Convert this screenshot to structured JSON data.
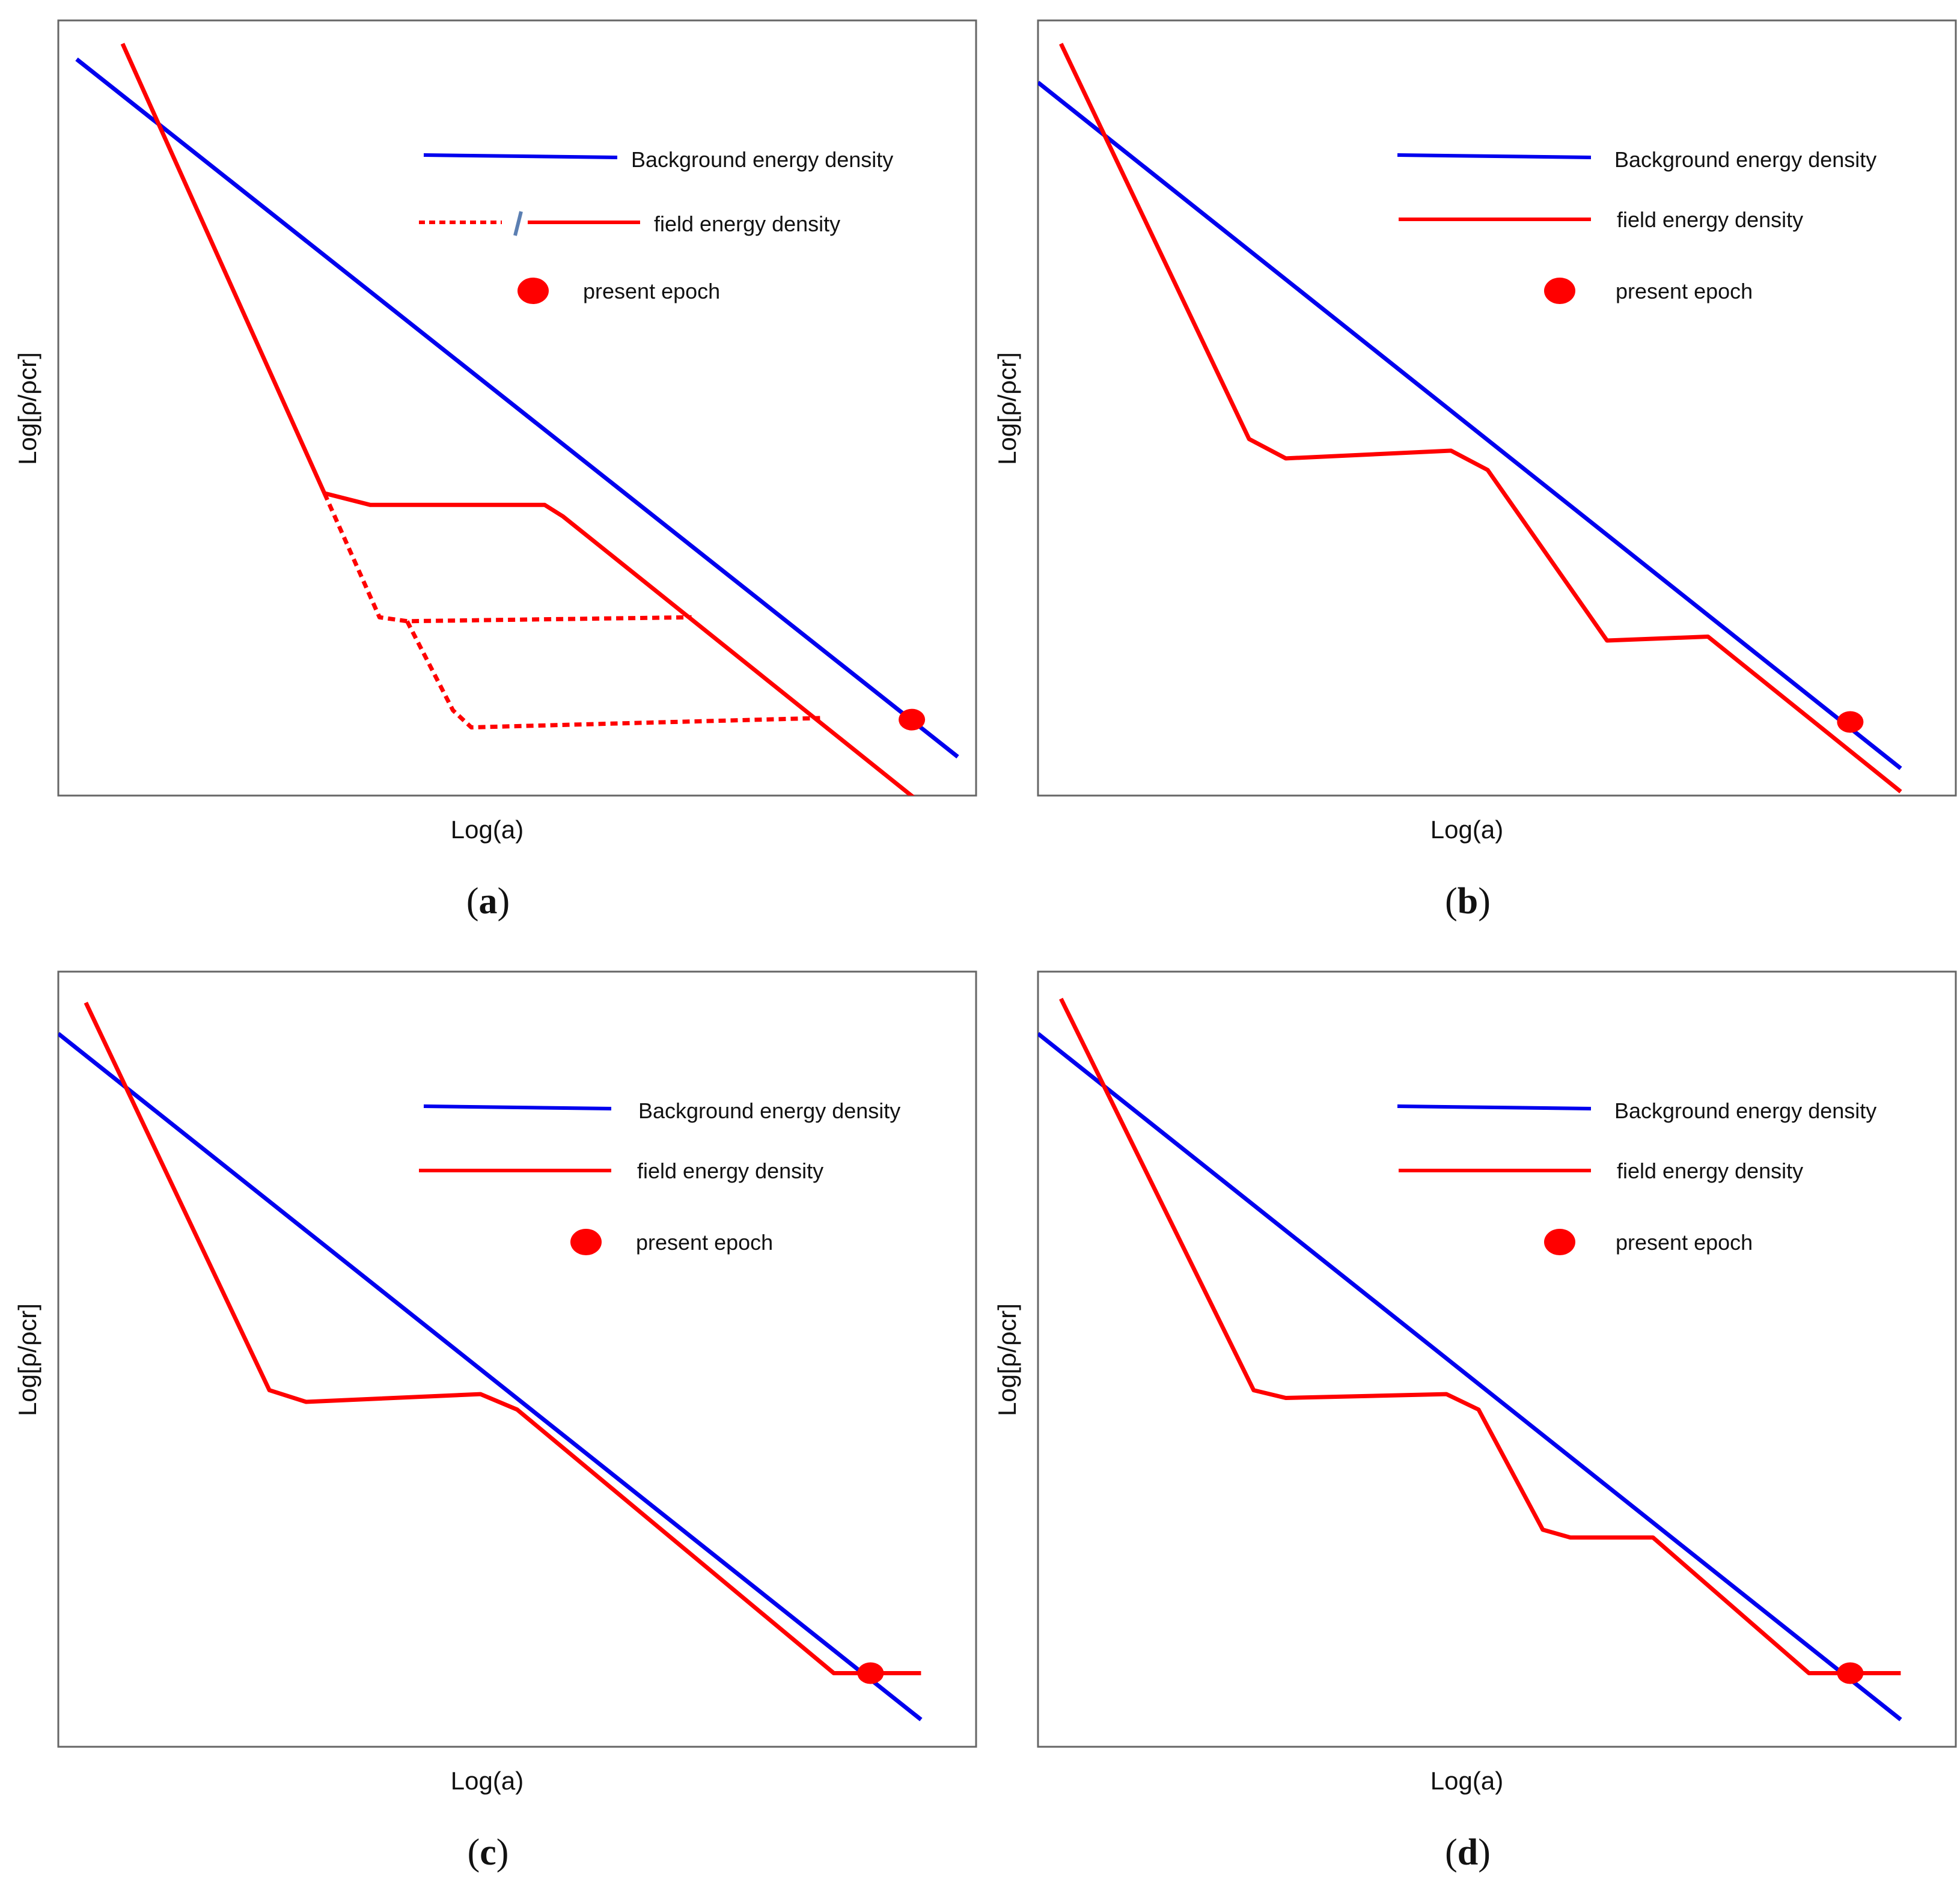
{
  "colors": {
    "background": "#0000ee",
    "field": "#ff0000",
    "epoch": "#ff0000",
    "separator": "#5b7fb2"
  },
  "chart_data": [
    {
      "type": "line",
      "panel": "a",
      "caption": "a",
      "xlabel": "Log(a)",
      "ylabel": "Log[ρ/ρcr]",
      "xlim": [
        0,
        10
      ],
      "ylim": [
        0,
        10
      ],
      "legend": [
        "Background energy density",
        "field  energy density",
        "present epoch"
      ],
      "legend_position": "top-right",
      "series": [
        {
          "name": "Background energy density",
          "style": "solid",
          "x": [
            0.2,
            9.8
          ],
          "y": [
            9.5,
            0.5
          ]
        },
        {
          "name": "field  energy density",
          "style": "solid",
          "x": [
            0.7,
            2.9,
            3.4,
            5.3,
            5.5,
            9.4
          ],
          "y": [
            9.7,
            3.9,
            3.75,
            3.75,
            3.6,
            -0.1
          ]
        },
        {
          "name": "field  energy density (dashed path 1)",
          "style": "dashed",
          "x": [
            2.9,
            3.5,
            3.8,
            6.9
          ],
          "y": [
            3.9,
            2.3,
            2.25,
            2.3
          ]
        },
        {
          "name": "field  energy density (dashed path 2)",
          "style": "dashed",
          "x": [
            3.8,
            4.3,
            4.5,
            8.3
          ],
          "y": [
            2.25,
            1.1,
            0.88,
            1.0
          ]
        }
      ],
      "present_epoch": {
        "x": 9.3,
        "y": 0.98
      }
    },
    {
      "type": "line",
      "panel": "b",
      "caption": "b",
      "xlabel": "Log(a)",
      "ylabel": "Log[ρ/ρcr]",
      "xlim": [
        0,
        10
      ],
      "ylim": [
        0,
        10
      ],
      "legend": [
        "Background energy density",
        "field  energy density",
        "present epoch"
      ],
      "legend_position": "top-right",
      "series": [
        {
          "name": "Background energy density",
          "style": "solid",
          "x": [
            0.0,
            9.4
          ],
          "y": [
            9.2,
            0.35
          ]
        },
        {
          "name": "field  energy density",
          "style": "solid",
          "x": [
            0.25,
            2.3,
            2.7,
            4.5,
            4.9,
            6.2,
            7.3,
            9.4
          ],
          "y": [
            9.7,
            4.6,
            4.35,
            4.45,
            4.2,
            2.0,
            2.05,
            0.05
          ]
        }
      ],
      "present_epoch": {
        "x": 8.85,
        "y": 0.95
      }
    },
    {
      "type": "line",
      "panel": "c",
      "caption": "c",
      "xlabel": "Log(a)",
      "ylabel": "Log[ρ/ρcr]",
      "xlim": [
        0,
        10
      ],
      "ylim": [
        0,
        10
      ],
      "legend": [
        "Background energy density",
        "field  energy density",
        "present epoch"
      ],
      "legend_position": "top-right",
      "series": [
        {
          "name": "Background energy density",
          "style": "solid",
          "x": [
            0.0,
            9.4
          ],
          "y": [
            9.2,
            0.35
          ]
        },
        {
          "name": "field  energy density",
          "style": "solid",
          "x": [
            0.3,
            2.3,
            2.7,
            4.6,
            5.0,
            8.45,
            9.4
          ],
          "y": [
            9.6,
            4.6,
            4.45,
            4.55,
            4.35,
            0.95,
            0.95
          ]
        }
      ],
      "present_epoch": {
        "x": 8.85,
        "y": 0.95
      }
    },
    {
      "type": "line",
      "panel": "d",
      "caption": "d",
      "xlabel": "Log(a)",
      "ylabel": "Log[ρ/ρcr]",
      "xlim": [
        0,
        10
      ],
      "ylim": [
        0,
        10
      ],
      "legend": [
        "Background energy density",
        "field  energy density",
        "present epoch"
      ],
      "legend_position": "top-right",
      "series": [
        {
          "name": "Background energy density",
          "style": "solid",
          "x": [
            0.0,
            9.4
          ],
          "y": [
            9.2,
            0.35
          ]
        },
        {
          "name": "field  energy density",
          "style": "solid",
          "x": [
            0.25,
            2.35,
            2.7,
            4.45,
            4.8,
            5.5,
            5.8,
            6.7,
            8.4,
            9.4
          ],
          "y": [
            9.65,
            4.6,
            4.5,
            4.55,
            4.35,
            2.8,
            2.7,
            2.7,
            0.95,
            0.95
          ]
        }
      ],
      "present_epoch": {
        "x": 8.85,
        "y": 0.95
      }
    }
  ]
}
